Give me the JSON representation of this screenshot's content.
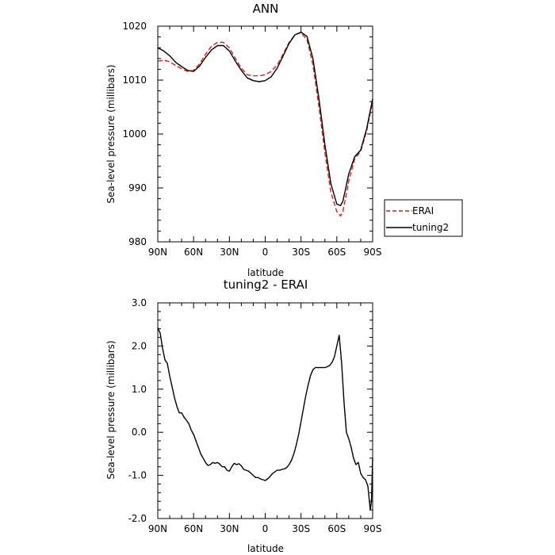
{
  "chart_data": [
    {
      "type": "line",
      "title": "ANN",
      "xlabel": "latitude",
      "ylabel": "Sea-level pressure (millibars)",
      "xlim": [
        90,
        -90
      ],
      "ylim": [
        980,
        1020
      ],
      "x_ticks": [
        90,
        60,
        30,
        0,
        -30,
        -60,
        -90
      ],
      "x_tick_labels": [
        "90N",
        "60N",
        "30N",
        "0",
        "30S",
        "60S",
        "90S"
      ],
      "y_ticks": [
        980,
        990,
        1000,
        1010,
        1020
      ],
      "y_tick_labels": [
        "980",
        "990",
        "1000",
        "1010",
        "1020"
      ],
      "legend_position": "right",
      "series": [
        {
          "name": "ERAI",
          "color": "#e41a1c",
          "dash": "dashed",
          "x": [
            90,
            85,
            80,
            75,
            70,
            65,
            60,
            55,
            50,
            45,
            40,
            35,
            30,
            25,
            20,
            15,
            10,
            5,
            0,
            -5,
            -10,
            -15,
            -20,
            -25,
            -30,
            -35,
            -40,
            -45,
            -50,
            -55,
            -60,
            -63,
            -65,
            -67,
            -70,
            -75,
            -80,
            -85,
            -90
          ],
          "y": [
            1013.5,
            1013.7,
            1013.4,
            1012.7,
            1012.1,
            1011.6,
            1011.8,
            1013.0,
            1014.8,
            1016.3,
            1017.0,
            1017.0,
            1016.0,
            1014.0,
            1012.2,
            1011.0,
            1010.8,
            1010.8,
            1011.0,
            1011.6,
            1012.8,
            1014.8,
            1017.0,
            1018.4,
            1018.8,
            1017.5,
            1012.8,
            1005.0,
            996.5,
            989.2,
            985.6,
            984.8,
            985.6,
            987.8,
            991.3,
            995.4,
            996.8,
            1000.6,
            1006.0
          ]
        },
        {
          "name": "tuning2",
          "color": "#000000",
          "dash": "solid",
          "x": [
            90,
            85,
            80,
            75,
            70,
            65,
            60,
            55,
            50,
            45,
            40,
            35,
            30,
            25,
            20,
            15,
            10,
            5,
            0,
            -5,
            -10,
            -15,
            -20,
            -25,
            -30,
            -35,
            -40,
            -45,
            -50,
            -55,
            -60,
            -63,
            -65,
            -67,
            -70,
            -75,
            -80,
            -85,
            -90
          ],
          "y": [
            1016.0,
            1015.4,
            1014.5,
            1013.3,
            1012.5,
            1011.8,
            1011.6,
            1012.6,
            1014.2,
            1015.6,
            1016.4,
            1016.4,
            1015.4,
            1013.5,
            1011.8,
            1010.4,
            1009.9,
            1009.7,
            1009.9,
            1010.6,
            1012.2,
            1014.5,
            1016.8,
            1018.4,
            1018.9,
            1018.1,
            1014.0,
            1006.5,
            998.0,
            990.8,
            987.0,
            986.7,
            987.5,
            989.5,
            992.6,
            995.8,
            997.0,
            1001.0,
            1006.5
          ]
        }
      ]
    },
    {
      "type": "line",
      "title": "tuning2 - ERAI",
      "xlabel": "latitude",
      "ylabel": "Sea-level pressure (millibars)",
      "xlim": [
        90,
        -90
      ],
      "ylim": [
        -2.0,
        3.0
      ],
      "x_ticks": [
        90,
        60,
        30,
        0,
        -30,
        -60,
        -90
      ],
      "x_tick_labels": [
        "90N",
        "60N",
        "30N",
        "0",
        "30S",
        "60S",
        "90S"
      ],
      "y_ticks": [
        -2.0,
        -1.0,
        0.0,
        1.0,
        2.0,
        3.0
      ],
      "y_tick_labels": [
        "-2.0",
        "-1.0",
        "0.0",
        "1.0",
        "2.0",
        "3.0"
      ],
      "series": [
        {
          "color": "#000000",
          "dash": "solid",
          "x": [
            90,
            88,
            86,
            84,
            82,
            80,
            78,
            76,
            74,
            72,
            70,
            68,
            66,
            64,
            62,
            60,
            58,
            56,
            54,
            52,
            50,
            48,
            46,
            44,
            42,
            40,
            38,
            36,
            34,
            32,
            30,
            28,
            26,
            24,
            22,
            20,
            18,
            16,
            14,
            12,
            10,
            8,
            6,
            4,
            2,
            0,
            -2,
            -4,
            -6,
            -8,
            -10,
            -12,
            -14,
            -16,
            -18,
            -20,
            -22,
            -24,
            -26,
            -28,
            -30,
            -32,
            -34,
            -36,
            -38,
            -40,
            -42,
            -44,
            -46,
            -48,
            -50,
            -52,
            -54,
            -56,
            -58,
            -60,
            -62,
            -64,
            -66,
            -68,
            -70,
            -72,
            -74,
            -76,
            -78,
            -80,
            -82,
            -84,
            -86,
            -88,
            -89,
            -90
          ],
          "y": [
            2.42,
            2.3,
            1.95,
            1.68,
            1.6,
            1.3,
            1.05,
            0.8,
            0.6,
            0.45,
            0.45,
            0.35,
            0.28,
            0.2,
            0.05,
            -0.05,
            -0.2,
            -0.35,
            -0.5,
            -0.6,
            -0.7,
            -0.77,
            -0.75,
            -0.7,
            -0.72,
            -0.7,
            -0.74,
            -0.8,
            -0.8,
            -0.88,
            -0.9,
            -0.8,
            -0.72,
            -0.75,
            -0.73,
            -0.78,
            -0.86,
            -0.88,
            -0.9,
            -0.95,
            -1.0,
            -1.05,
            -1.05,
            -1.08,
            -1.1,
            -1.12,
            -1.08,
            -1.03,
            -0.96,
            -0.92,
            -0.88,
            -0.88,
            -0.86,
            -0.85,
            -0.82,
            -0.75,
            -0.65,
            -0.5,
            -0.3,
            -0.05,
            0.25,
            0.55,
            0.85,
            1.1,
            1.32,
            1.45,
            1.5,
            1.5,
            1.5,
            1.5,
            1.5,
            1.52,
            1.55,
            1.62,
            1.75,
            2.0,
            2.25,
            1.6,
            0.7,
            0.0,
            -0.15,
            -0.35,
            -0.6,
            -0.75,
            -0.7,
            -0.95,
            -1.05,
            -1.1,
            -1.25,
            -1.8,
            -1.6,
            -0.6
          ]
        }
      ]
    }
  ]
}
